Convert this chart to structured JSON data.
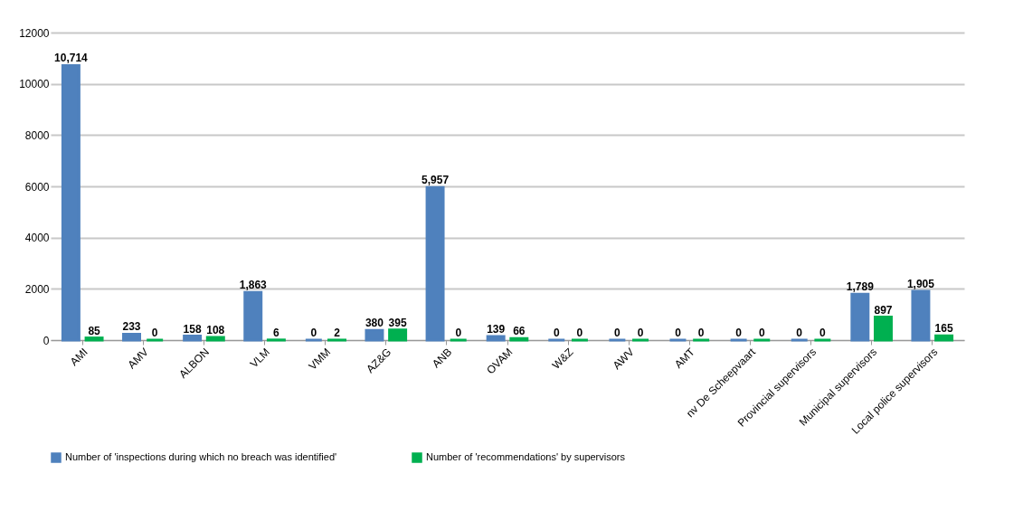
{
  "chart_data": {
    "type": "bar",
    "categories": [
      "AMI",
      "AMV",
      "ALBON",
      "VLM",
      "VMM",
      "AZ&G",
      "ANB",
      "OVAM",
      "W&Z",
      "AWV",
      "AMT",
      "nv De Scheepvaart",
      "Provincial supervisors",
      "Municipal supervisors",
      "Local police supervisors"
    ],
    "series": [
      {
        "name": "Number of 'inspections during which no breach was identified'",
        "color": "#4f81bd",
        "values": [
          10714,
          233,
          158,
          1863,
          0,
          380,
          5957,
          139,
          0,
          0,
          0,
          0,
          0,
          1789,
          1905
        ],
        "value_labels": [
          "10,714",
          "233",
          "158",
          "1,863",
          "0",
          "380",
          "5,957",
          "139",
          "0",
          "0",
          "0",
          "0",
          "0",
          "1,789",
          "1,905"
        ]
      },
      {
        "name": "Number of 'recommendations' by supervisors",
        "color": "#00b050",
        "values": [
          85,
          0,
          108,
          6,
          2,
          395,
          0,
          66,
          0,
          0,
          0,
          0,
          0,
          897,
          165
        ],
        "value_labels": [
          "85",
          "0",
          "108",
          "6",
          "2",
          "395",
          "0",
          "66",
          "0",
          "0",
          "0",
          "0",
          "0",
          "897",
          "165"
        ]
      }
    ],
    "ylim": [
      0,
      12000
    ],
    "yticks": [
      0,
      2000,
      4000,
      6000,
      8000,
      10000,
      12000
    ],
    "grid": "y",
    "legend": "bottom"
  }
}
